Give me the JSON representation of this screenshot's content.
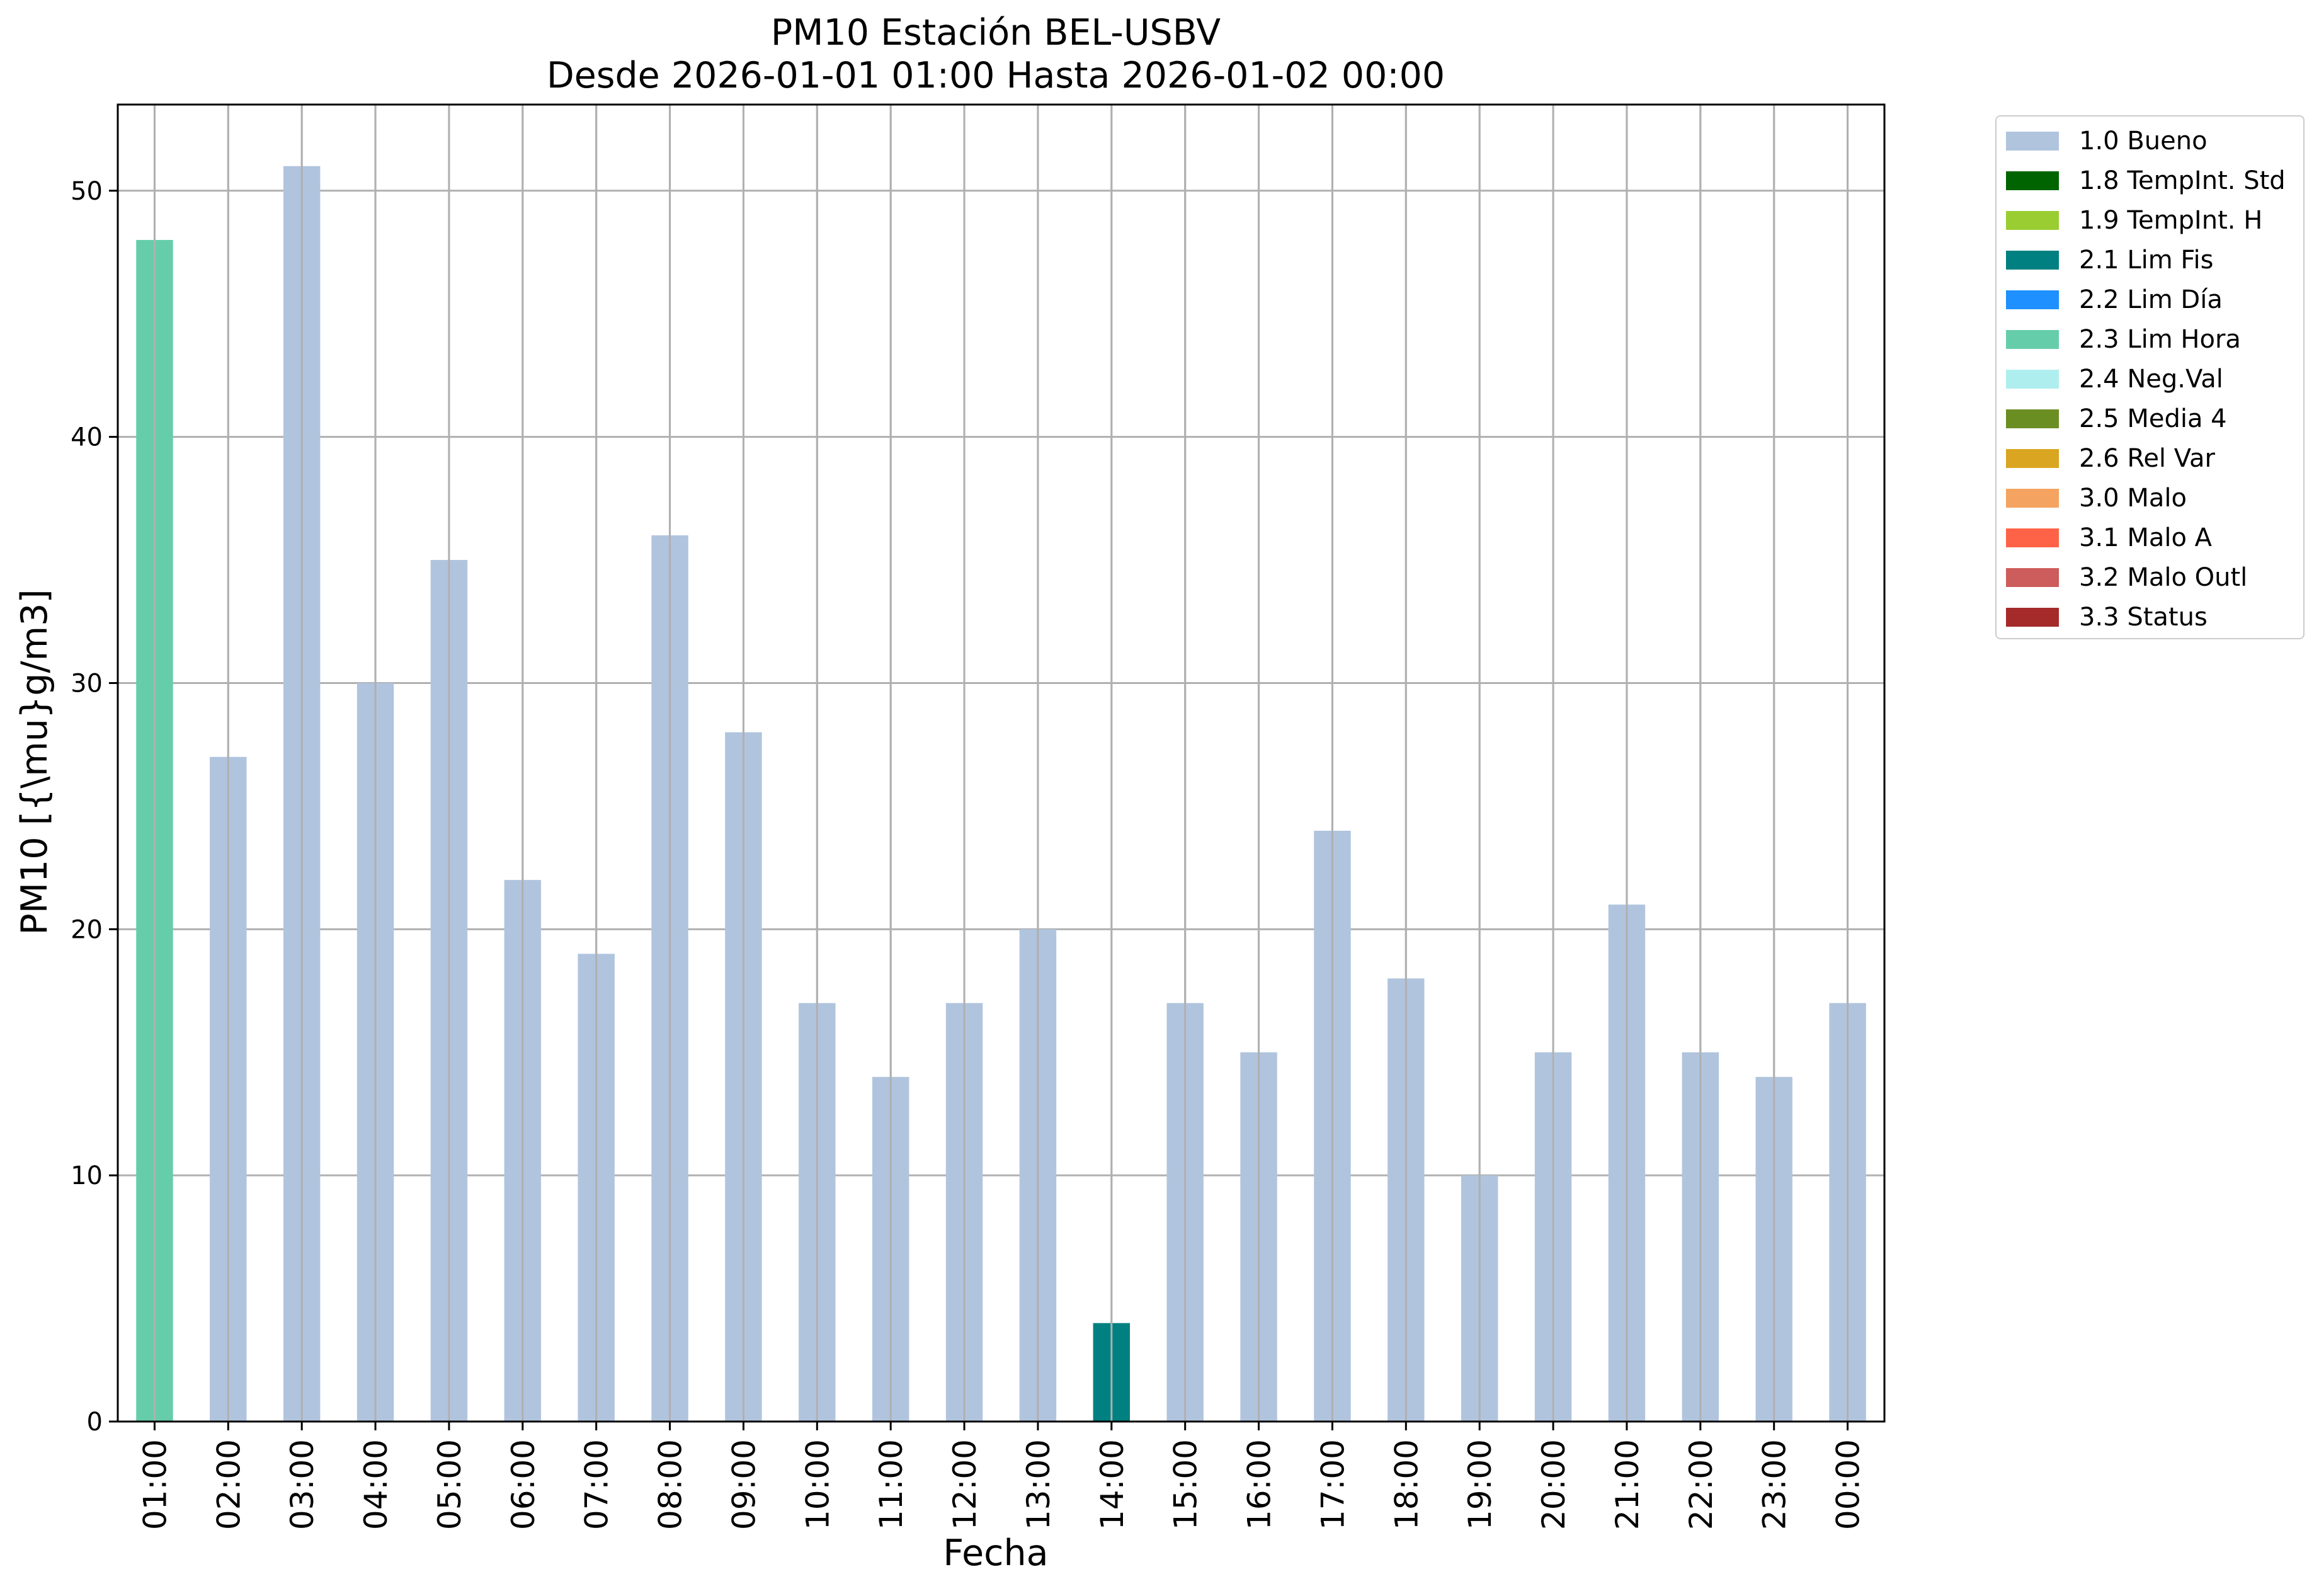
{
  "chart_data": {
    "type": "bar",
    "title": "PM10 Estación BEL-USBV",
    "subtitle": "Desde 2026-01-01 01:00 Hasta 2026-01-02 00:00",
    "xlabel": "Fecha",
    "ylabel": "PM10 [{\\mu}g/m3]",
    "ylim": [
      0,
      53.5
    ],
    "yticks": [
      0,
      10,
      20,
      30,
      40,
      50
    ],
    "grid": true,
    "legend_position": "outside-right",
    "categories": [
      "01:00",
      "02:00",
      "03:00",
      "04:00",
      "05:00",
      "06:00",
      "07:00",
      "08:00",
      "09:00",
      "10:00",
      "11:00",
      "12:00",
      "13:00",
      "14:00",
      "15:00",
      "16:00",
      "17:00",
      "18:00",
      "19:00",
      "20:00",
      "21:00",
      "22:00",
      "23:00",
      "00:00"
    ],
    "values": [
      48,
      27,
      51,
      30,
      35,
      22,
      19,
      36,
      28,
      17,
      14,
      17,
      20,
      4,
      17,
      15,
      24,
      18,
      10,
      15,
      21,
      15,
      14,
      17
    ],
    "flags": [
      "2.3 Lim Hora",
      "1.0 Bueno",
      "1.0 Bueno",
      "1.0 Bueno",
      "1.0 Bueno",
      "1.0 Bueno",
      "1.0 Bueno",
      "1.0 Bueno",
      "1.0 Bueno",
      "1.0 Bueno",
      "1.0 Bueno",
      "1.0 Bueno",
      "1.0 Bueno",
      "2.1 Lim Fis",
      "1.0 Bueno",
      "1.0 Bueno",
      "1.0 Bueno",
      "1.0 Bueno",
      "1.0 Bueno",
      "1.0 Bueno",
      "1.0 Bueno",
      "1.0 Bueno",
      "1.0 Bueno",
      "1.0 Bueno"
    ],
    "legend": [
      {
        "label": "1.0 Bueno",
        "color": "#b0c4de"
      },
      {
        "label": "1.8 TempInt. Std",
        "color": "#006400"
      },
      {
        "label": "1.9 TempInt. H",
        "color": "#9acd32"
      },
      {
        "label": "2.1 Lim Fis",
        "color": "#008080"
      },
      {
        "label": "2.2 Lim Día",
        "color": "#1e90ff"
      },
      {
        "label": "2.3 Lim Hora",
        "color": "#66cdaa"
      },
      {
        "label": "2.4 Neg.Val",
        "color": "#afeeee"
      },
      {
        "label": "2.5 Media 4",
        "color": "#6b8e23"
      },
      {
        "label": "2.6 Rel Var",
        "color": "#daa520"
      },
      {
        "label": "3.0 Malo",
        "color": "#f4a460"
      },
      {
        "label": "3.1 Malo A",
        "color": "#ff6347"
      },
      {
        "label": "3.2 Malo Outl",
        "color": "#cd5c5c"
      },
      {
        "label": "3.3 Status",
        "color": "#a52a2a"
      }
    ]
  }
}
